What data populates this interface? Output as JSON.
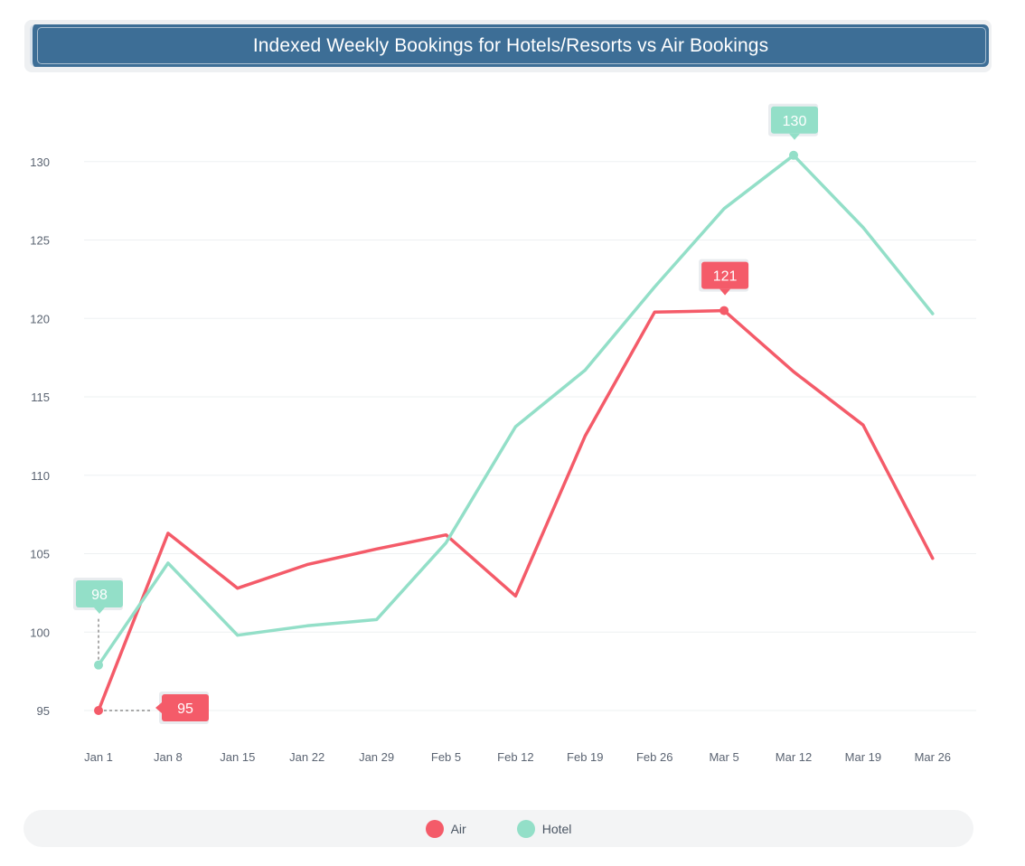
{
  "chart_data": {
    "type": "line",
    "title": "Indexed Weekly Bookings for Hotels/Resorts vs Air Bookings",
    "categories": [
      "Jan 1",
      "Jan 8",
      "Jan 15",
      "Jan 22",
      "Jan 29",
      "Feb 5",
      "Feb 12",
      "Feb 19",
      "Feb 26",
      "Mar 5",
      "Mar 12",
      "Mar 19",
      "Mar 26"
    ],
    "y_ticks": [
      "95",
      "100",
      "105",
      "110",
      "115",
      "120",
      "125",
      "130"
    ],
    "ylim": [
      93,
      133
    ],
    "grid": true,
    "legend_position": "bottom",
    "series": [
      {
        "name": "Air",
        "color": "#f45b69",
        "values": [
          95.0,
          106.3,
          102.8,
          104.3,
          105.3,
          106.2,
          102.3,
          112.5,
          120.4,
          120.5,
          116.6,
          113.2,
          104.7
        ]
      },
      {
        "name": "Hotel",
        "color": "#93dfc8",
        "values": [
          97.9,
          104.4,
          99.8,
          100.4,
          100.8,
          105.7,
          113.1,
          116.7,
          122.0,
          127.0,
          130.4,
          125.8,
          120.3
        ]
      }
    ],
    "annotations": [
      {
        "series": "Air",
        "index": 0,
        "label": "95"
      },
      {
        "series": "Hotel",
        "index": 0,
        "label": "98"
      },
      {
        "series": "Air",
        "index": 9,
        "label": "121"
      },
      {
        "series": "Hotel",
        "index": 10,
        "label": "130"
      }
    ]
  }
}
